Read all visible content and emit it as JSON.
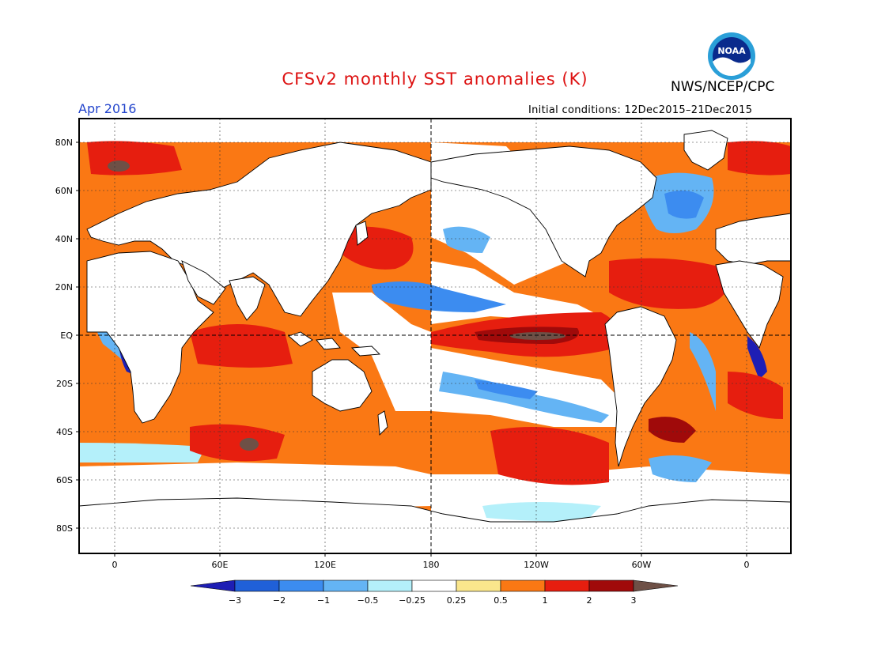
{
  "header": {
    "title": "CFSv2 monthly SST anomalies (K)",
    "agency": "NWS/NCEP/CPC",
    "valid_month": "Apr 2016",
    "initial_conditions": "Initial conditions: 12Dec2015–21Dec2015"
  },
  "axes": {
    "lat_labels": [
      "80N",
      "60N",
      "40N",
      "20N",
      "EQ",
      "20S",
      "40S",
      "60S",
      "80S"
    ],
    "lon_labels": [
      "0",
      "60E",
      "120E",
      "180",
      "120W",
      "60W",
      "0"
    ]
  },
  "legend": {
    "labels": [
      "−3",
      "−2",
      "−1",
      "−0.5",
      "−0.25",
      "0.25",
      "0.5",
      "1",
      "2",
      "3"
    ],
    "colors": [
      "#1e1eb4",
      "#2060d8",
      "#3c8cf0",
      "#64b4f4",
      "#b4f0fa",
      "#ffffff",
      "#fae68c",
      "#fa7814",
      "#e61e0f",
      "#a00a0a",
      "#6e5046"
    ]
  },
  "colors": {
    "title": "#dd1111",
    "valid_month": "#2244cc",
    "ocean_default": "#fa7814"
  },
  "logo": {
    "icon": "noaa-logo-icon",
    "text": "NOAA"
  }
}
